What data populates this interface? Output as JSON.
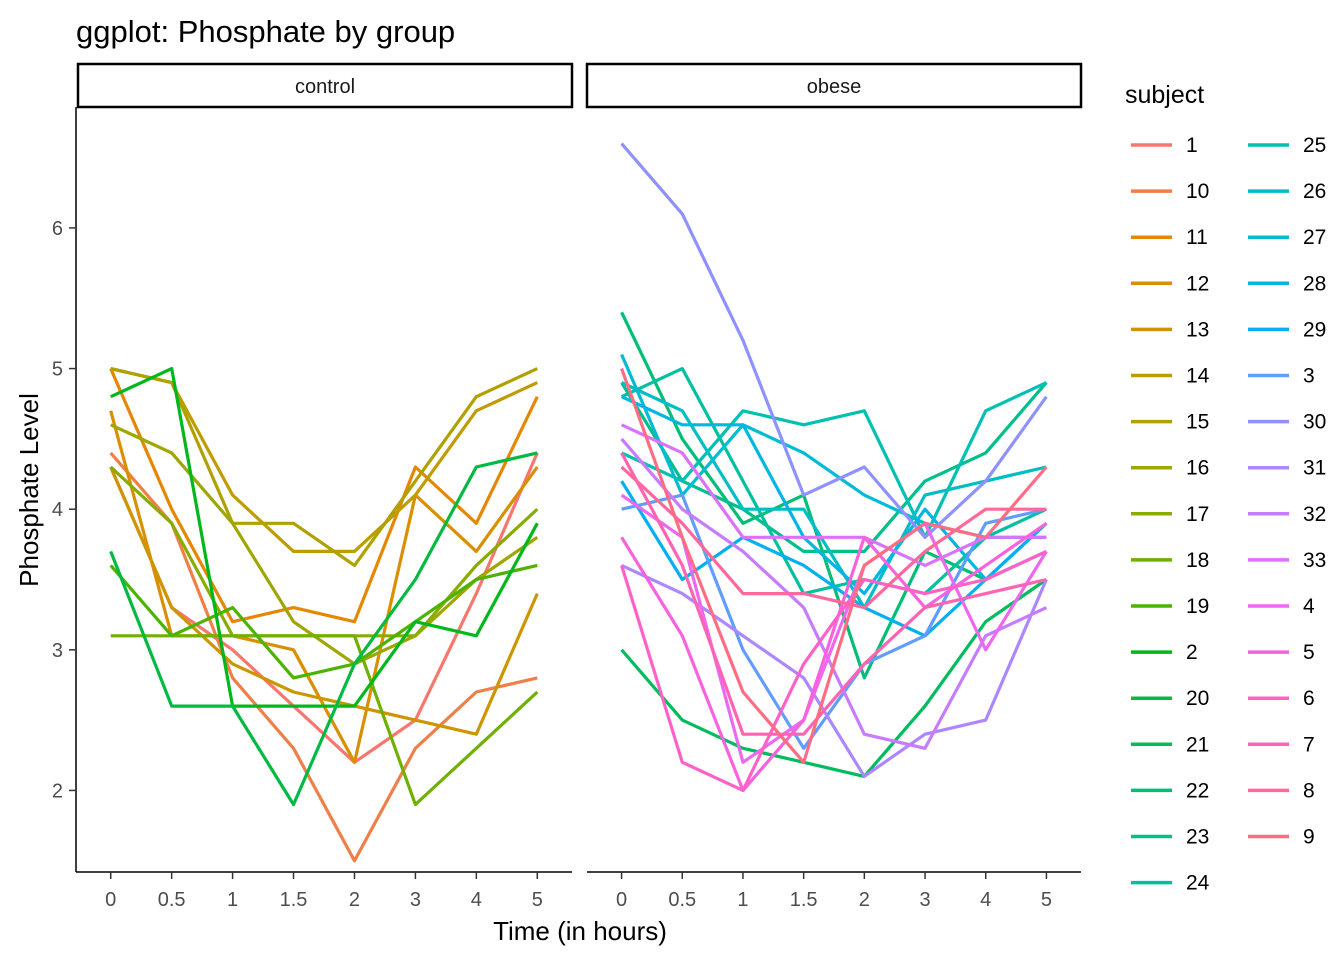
{
  "chart_data": {
    "type": "line",
    "title": "ggplot: Phosphate by group",
    "xlabel": "Time (in hours)",
    "ylabel": "Phosphate Level",
    "x_tick_labels": [
      "0",
      "0.5",
      "1",
      "1.5",
      "2",
      "3",
      "4",
      "5"
    ],
    "x": [
      0,
      0.5,
      1,
      1.5,
      2,
      3,
      4,
      5
    ],
    "y_ticks": [
      2,
      3,
      4,
      5,
      6
    ],
    "ylim": [
      1.42,
      6.86
    ],
    "grid": false,
    "legend": {
      "title": "subject",
      "position": "right",
      "columns": 2
    },
    "panels": [
      {
        "name": "control",
        "series": [
          {
            "name": "1",
            "color": "#F8766D",
            "values": [
              4.3,
              3.3,
              3.0,
              2.6,
              2.2,
              2.5,
              3.4,
              4.4
            ]
          },
          {
            "name": "10",
            "color": "#EF7F49",
            "values": [
              4.4,
              3.9,
              2.8,
              2.3,
              1.5,
              2.3,
              2.7,
              2.8
            ]
          },
          {
            "name": "11",
            "color": "#E58700",
            "values": [
              5.0,
              4.0,
              3.2,
              3.3,
              3.2,
              4.3,
              3.9,
              4.8
            ]
          },
          {
            "name": "12",
            "color": "#DA8F00",
            "values": [
              4.7,
              3.1,
              3.1,
              3.0,
              2.2,
              4.1,
              3.7,
              4.3
            ]
          },
          {
            "name": "13",
            "color": "#CD9600",
            "values": [
              4.3,
              3.3,
              2.9,
              2.7,
              2.6,
              2.5,
              2.4,
              3.4
            ]
          },
          {
            "name": "14",
            "color": "#BF9C00",
            "values": [
              5.0,
              4.9,
              4.1,
              3.7,
              3.7,
              4.1,
              4.7,
              4.9
            ]
          },
          {
            "name": "15",
            "color": "#AFA100",
            "values": [
              5.0,
              4.9,
              3.9,
              3.9,
              3.6,
              4.2,
              4.8,
              5.0
            ]
          },
          {
            "name": "16",
            "color": "#9DA700",
            "values": [
              4.6,
              4.4,
              3.9,
              3.2,
              2.9,
              3.1,
              3.5,
              3.8
            ]
          },
          {
            "name": "17",
            "color": "#88AC00",
            "values": [
              4.3,
              3.9,
              3.1,
              3.1,
              3.1,
              3.1,
              3.6,
              4.0
            ]
          },
          {
            "name": "18",
            "color": "#6FB000",
            "values": [
              3.1,
              3.1,
              3.1,
              3.1,
              3.1,
              1.9,
              2.3,
              2.7
            ]
          },
          {
            "name": "19",
            "color": "#4CB400",
            "values": [
              3.6,
              3.1,
              3.3,
              2.8,
              2.9,
              3.2,
              3.5,
              3.6
            ]
          },
          {
            "name": "2",
            "color": "#00B81B",
            "values": [
              4.8,
              5.0,
              2.6,
              2.6,
              2.6,
              3.2,
              3.1,
              3.9
            ]
          },
          {
            "name": "20",
            "color": "#00BA42",
            "values": [
              3.7,
              2.6,
              2.6,
              1.9,
              2.9,
              3.5,
              4.3,
              4.4
            ]
          }
        ]
      },
      {
        "name": "obese",
        "series": [
          {
            "name": "21",
            "color": "#00BC5E",
            "values": [
              3.0,
              2.5,
              2.3,
              2.2,
              2.1,
              2.6,
              3.2,
              3.5
            ]
          },
          {
            "name": "22",
            "color": "#00BE76",
            "values": [
              5.4,
              4.5,
              3.9,
              4.1,
              2.8,
              3.7,
              3.5,
              3.7
            ]
          },
          {
            "name": "23",
            "color": "#00BF8B",
            "values": [
              4.9,
              4.2,
              4.0,
              3.7,
              3.7,
              4.2,
              4.4,
              4.9
            ]
          },
          {
            "name": "24",
            "color": "#00C09F",
            "values": [
              4.8,
              5.0,
              4.2,
              3.4,
              3.5,
              3.4,
              3.8,
              4.0
            ]
          },
          {
            "name": "25",
            "color": "#00C0B2",
            "values": [
              4.4,
              4.2,
              4.7,
              4.6,
              4.7,
              3.8,
              4.7,
              4.9
            ]
          },
          {
            "name": "26",
            "color": "#00BEC4",
            "values": [
              4.9,
              4.7,
              4.0,
              4.0,
              3.3,
              4.1,
              4.2,
              4.3
            ]
          },
          {
            "name": "27",
            "color": "#00BBD4",
            "values": [
              5.1,
              4.1,
              4.6,
              4.4,
              4.1,
              3.9,
              3.8,
              3.8
            ]
          },
          {
            "name": "28",
            "color": "#00B6E3",
            "values": [
              4.8,
              4.6,
              4.6,
              3.8,
              3.4,
              4.0,
              3.5,
              3.9
            ]
          },
          {
            "name": "29",
            "color": "#00B0F0",
            "values": [
              4.2,
              3.5,
              3.8,
              3.6,
              3.3,
              3.1,
              3.5,
              3.9
            ]
          },
          {
            "name": "3",
            "color": "#619CFF",
            "values": [
              4.0,
              4.1,
              3.0,
              2.3,
              2.9,
              3.1,
              3.9,
              4.0
            ]
          },
          {
            "name": "30",
            "color": "#8F91FF",
            "values": [
              6.6,
              6.1,
              5.2,
              4.1,
              4.3,
              3.8,
              4.2,
              4.8
            ]
          },
          {
            "name": "31",
            "color": "#AD87FF",
            "values": [
              3.6,
              3.4,
              3.1,
              2.8,
              2.1,
              2.4,
              2.5,
              3.5
            ]
          },
          {
            "name": "32",
            "color": "#C77CFF",
            "values": [
              4.5,
              4.0,
              3.7,
              3.3,
              2.4,
              2.3,
              3.1,
              3.3
            ]
          },
          {
            "name": "33",
            "color": "#DB72FB",
            "values": [
              4.6,
              4.4,
              3.8,
              3.8,
              3.8,
              3.6,
              3.8,
              3.8
            ]
          },
          {
            "name": "4",
            "color": "#EC68EE",
            "values": [
              4.1,
              3.8,
              2.2,
              2.5,
              3.6,
              3.9,
              3.0,
              3.7
            ]
          },
          {
            "name": "5",
            "color": "#F862DD",
            "values": [
              3.8,
              3.1,
              2.0,
              2.5,
              3.8,
              3.3,
              3.6,
              3.9
            ]
          },
          {
            "name": "6",
            "color": "#FF61C9",
            "values": [
              3.6,
              2.2,
              2.0,
              2.9,
              3.5,
              3.4,
              3.5,
              3.7
            ]
          },
          {
            "name": "7",
            "color": "#FF63B3",
            "values": [
              4.4,
              3.6,
              2.4,
              2.4,
              2.9,
              3.3,
              3.4,
              3.5
            ]
          },
          {
            "name": "8",
            "color": "#FF689C",
            "values": [
              4.3,
              3.9,
              3.4,
              3.4,
              3.3,
              3.7,
              4.0,
              4.0
            ]
          },
          {
            "name": "9",
            "color": "#FE6D83",
            "values": [
              5.0,
              3.8,
              2.7,
              2.2,
              3.6,
              3.9,
              3.8,
              4.3
            ]
          }
        ]
      }
    ],
    "legend_order": [
      "1",
      "10",
      "11",
      "12",
      "13",
      "14",
      "15",
      "16",
      "17",
      "18",
      "19",
      "2",
      "20",
      "21",
      "22",
      "23",
      "24",
      "25",
      "26",
      "27",
      "28",
      "29",
      "3",
      "30",
      "31",
      "32",
      "33",
      "4",
      "5",
      "6",
      "7",
      "8",
      "9"
    ]
  }
}
